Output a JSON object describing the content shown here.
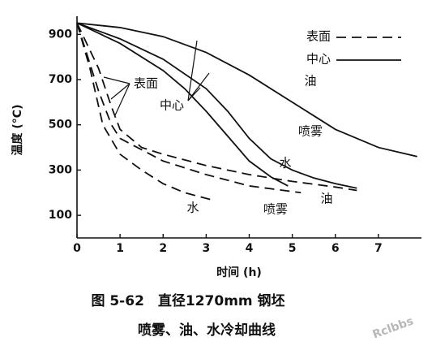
{
  "chart_data": {
    "type": "line",
    "title": "图 5-62　直径1270mm 钢坯",
    "subtitle": "喷雾、油、水冷却曲线",
    "x_label": "时间 (h)",
    "y_label": "温度 (°C)",
    "xlim": [
      0,
      8
    ],
    "xticks": [
      0,
      1,
      2,
      3,
      4,
      5,
      6,
      7
    ],
    "ylim": [
      0,
      980
    ],
    "yticks": [
      100,
      300,
      500,
      700,
      900
    ],
    "color": "#111111",
    "legend": [
      {
        "label": "表面",
        "dashed": true
      },
      {
        "label": "中心",
        "dashed": false
      }
    ],
    "annotations": [
      "油",
      "表面",
      "中心",
      "喷雾",
      "水",
      "油",
      "水",
      "喷雾"
    ],
    "watermark": "Rclbbs",
    "series": [
      {
        "dashed": false,
        "x": [
          0,
          1,
          2,
          3,
          4,
          5,
          5.5,
          6,
          7,
          7.9
        ],
        "values": [
          950,
          930,
          890,
          820,
          720,
          600,
          540,
          480,
          400,
          360
        ]
      },
      {
        "dashed": false,
        "x": [
          0,
          1,
          2,
          3,
          3.5,
          4,
          4.5,
          5,
          5.5,
          6,
          6.5
        ],
        "values": [
          950,
          880,
          790,
          660,
          560,
          440,
          350,
          300,
          265,
          240,
          220
        ]
      },
      {
        "dashed": false,
        "x": [
          0,
          1,
          2,
          2.5,
          3,
          3.5,
          4,
          4.5,
          4.9
        ],
        "values": [
          950,
          860,
          740,
          660,
          560,
          450,
          340,
          270,
          230
        ]
      },
      {
        "dashed": true,
        "x": [
          0,
          0.5,
          0.8,
          1,
          1.5,
          2,
          3,
          4,
          5,
          6,
          6.5
        ],
        "values": [
          950,
          750,
          580,
          480,
          400,
          370,
          320,
          280,
          250,
          225,
          210
        ]
      },
      {
        "dashed": true,
        "x": [
          0,
          0.5,
          0.8,
          1,
          1.5,
          2,
          3,
          4,
          5.2
        ],
        "values": [
          950,
          650,
          500,
          440,
          390,
          340,
          280,
          230,
          200
        ]
      },
      {
        "dashed": true,
        "x": [
          0,
          0.3,
          0.6,
          1,
          1.5,
          2,
          2.5,
          3.1
        ],
        "values": [
          950,
          750,
          500,
          370,
          300,
          240,
          200,
          170
        ]
      }
    ]
  }
}
